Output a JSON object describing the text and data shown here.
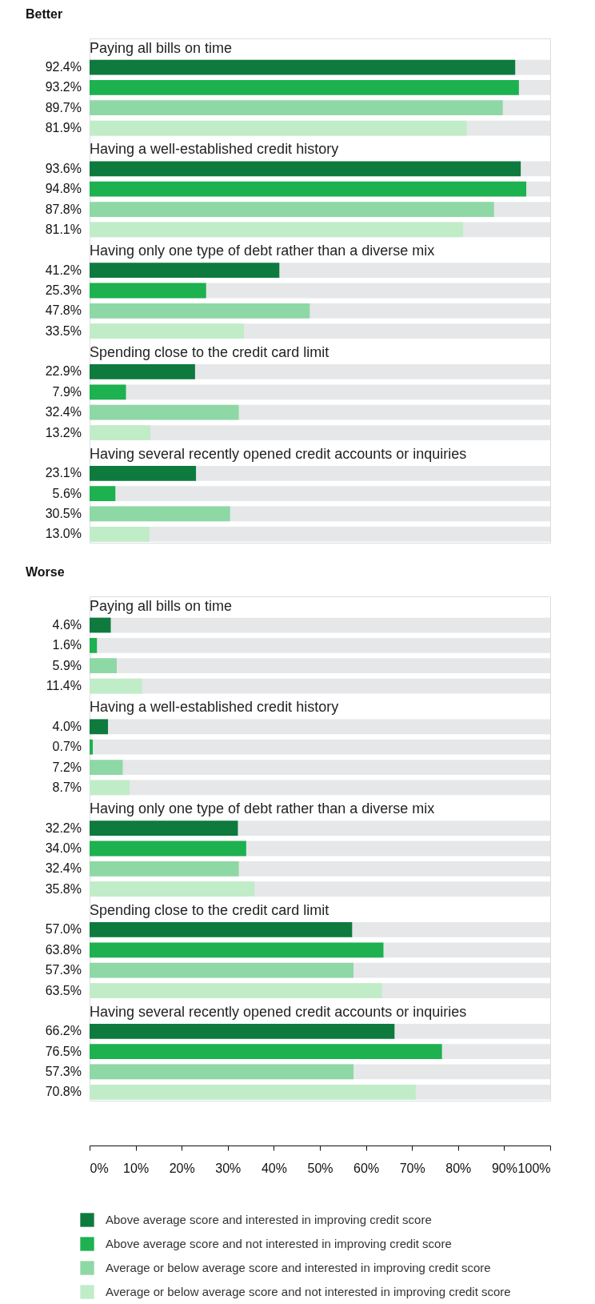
{
  "chart_data": [
    {
      "type": "bar",
      "orientation": "horizontal",
      "title": "Better",
      "categories": [
        "Paying all bills on time",
        "Having a well-established credit history",
        "Having only one type of debt rather than a diverse mix",
        "Spending close to the credit card limit",
        "Having several recently opened credit accounts or inquiries"
      ],
      "series": [
        {
          "color": "#0e7a3e",
          "values": [
            92.4,
            93.6,
            41.2,
            22.9,
            23.1
          ],
          "value_labels": [
            "92.4%",
            "93.6%",
            "41.2%",
            "22.9%",
            "23.1%"
          ]
        },
        {
          "color": "#1db14f",
          "values": [
            93.2,
            94.8,
            25.3,
            7.9,
            5.6
          ],
          "value_labels": [
            "93.2%",
            "94.8%",
            "25.3%",
            "7.9%",
            "5.6%"
          ]
        },
        {
          "color": "#8ed8a5",
          "values": [
            89.7,
            87.8,
            47.8,
            32.4,
            30.5
          ],
          "value_labels": [
            "89.7%",
            "87.8%",
            "47.8%",
            "32.4%",
            "30.5%"
          ]
        },
        {
          "color": "#c1ecc8",
          "values": [
            81.9,
            81.1,
            33.5,
            13.2,
            13.0
          ],
          "value_labels": [
            "81.9%",
            "81.1%",
            "33.5%",
            "13.2%",
            "13.0%"
          ]
        }
      ],
      "xlim": [
        0,
        100
      ],
      "tick_labels": "y",
      "grid": false,
      "legend": false
    },
    {
      "type": "bar",
      "orientation": "horizontal",
      "title": "Worse",
      "categories": [
        "Paying all bills on time",
        "Having a well-established credit history",
        "Having only one type of debt rather than a diverse mix",
        "Spending close to the credit card limit",
        "Having several recently opened credit accounts or inquiries"
      ],
      "series": [
        {
          "name": "Above average score and interested in improving credit score",
          "color": "#0e7a3e",
          "values": [
            4.6,
            4.0,
            32.2,
            57.0,
            66.2
          ],
          "value_labels": [
            "4.6%",
            "4.0%",
            "32.2%",
            "57.0%",
            "66.2%"
          ]
        },
        {
          "name": "Above average score and not interested in improving credit score",
          "color": "#1db14f",
          "values": [
            1.6,
            0.7,
            34.0,
            63.8,
            76.5
          ],
          "value_labels": [
            "1.6%",
            "0.7%",
            "34.0%",
            "63.8%",
            "76.5%"
          ]
        },
        {
          "name": "Average or below average score and interested in improving credit score",
          "color": "#8ed8a5",
          "values": [
            5.9,
            7.2,
            32.4,
            57.3,
            57.3
          ],
          "value_labels": [
            "5.9%",
            "7.2%",
            "32.4%",
            "57.3%",
            "57.3%"
          ]
        },
        {
          "name": "Average or below average score and not interested in improving credit score",
          "color": "#c1ecc8",
          "values": [
            11.4,
            8.7,
            35.8,
            63.5,
            70.8
          ],
          "value_labels": [
            "11.4%",
            "8.7%",
            "35.8%",
            "63.5%",
            "70.8%"
          ]
        }
      ],
      "xlim": [
        0,
        100
      ],
      "xticks": [
        {
          "value": 0,
          "label": "0%"
        },
        {
          "value": 10,
          "label": "10%"
        },
        {
          "value": 20,
          "label": "20%"
        },
        {
          "value": 30,
          "label": "30%"
        },
        {
          "value": 40,
          "label": "40%"
        },
        {
          "value": 50,
          "label": "50%"
        },
        {
          "value": 60,
          "label": "60%"
        },
        {
          "value": 70,
          "label": "70%"
        },
        {
          "value": 80,
          "label": "80%"
        },
        {
          "value": 90,
          "label": "90%"
        },
        {
          "value": 100,
          "label": "100%"
        }
      ],
      "grid": false,
      "legend": "bottom"
    }
  ]
}
